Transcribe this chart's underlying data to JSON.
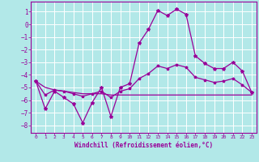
{
  "xlabel": "Windchill (Refroidissement éolien,°C)",
  "bg_color": "#b2e8e8",
  "grid_color": "#ffffff",
  "line_color": "#990099",
  "xlim": [
    -0.5,
    23.5
  ],
  "ylim": [
    -8.6,
    1.8
  ],
  "yticks": [
    1,
    0,
    -1,
    -2,
    -3,
    -4,
    -5,
    -6,
    -7,
    -8
  ],
  "xticks": [
    0,
    1,
    2,
    3,
    4,
    5,
    6,
    7,
    8,
    9,
    10,
    11,
    12,
    13,
    14,
    15,
    16,
    17,
    18,
    19,
    20,
    21,
    22,
    23
  ],
  "line1_x": [
    0,
    1,
    2,
    3,
    4,
    5,
    6,
    7,
    8,
    9,
    10,
    11,
    12,
    13,
    14,
    15,
    16,
    17,
    18,
    19,
    20,
    21,
    22,
    23
  ],
  "line1_y": [
    -4.5,
    -6.7,
    -5.3,
    -5.8,
    -6.3,
    -7.8,
    -6.2,
    -5.0,
    -7.3,
    -5.0,
    -4.7,
    -1.5,
    -0.4,
    1.1,
    0.7,
    1.2,
    0.8,
    -2.5,
    -3.1,
    -3.5,
    -3.5,
    -3.0,
    -3.7,
    -5.4
  ],
  "line2_x": [
    0,
    1,
    2,
    3,
    4,
    5,
    6,
    7,
    8,
    9,
    10,
    11,
    12,
    13,
    14,
    15,
    16,
    17,
    18,
    19,
    20,
    21,
    22,
    23
  ],
  "line2_y": [
    -4.5,
    -5.0,
    -5.2,
    -5.3,
    -5.4,
    -5.5,
    -5.5,
    -5.5,
    -5.6,
    -5.6,
    -5.6,
    -5.6,
    -5.6,
    -5.6,
    -5.6,
    -5.6,
    -5.6,
    -5.6,
    -5.6,
    -5.6,
    -5.6,
    -5.6,
    -5.6,
    -5.6
  ],
  "line3_x": [
    0,
    1,
    2,
    3,
    4,
    5,
    6,
    7,
    8,
    9,
    10,
    11,
    12,
    13,
    14,
    15,
    16,
    17,
    18,
    19,
    20,
    21,
    22,
    23
  ],
  "line3_y": [
    -4.5,
    -5.6,
    -5.2,
    -5.3,
    -5.5,
    -5.7,
    -5.5,
    -5.3,
    -5.8,
    -5.3,
    -5.1,
    -4.3,
    -3.9,
    -3.3,
    -3.5,
    -3.2,
    -3.4,
    -4.2,
    -4.4,
    -4.6,
    -4.5,
    -4.3,
    -4.8,
    -5.4
  ]
}
